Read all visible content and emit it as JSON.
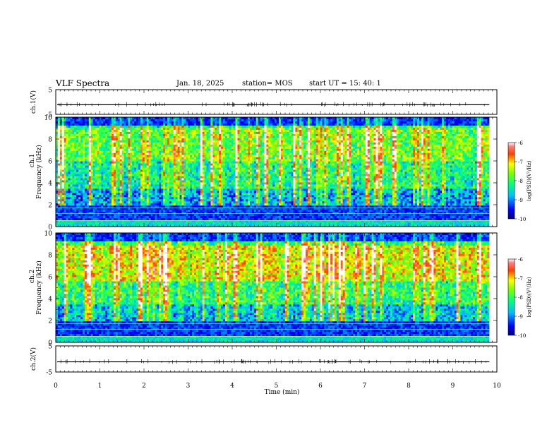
{
  "header": {
    "title": "VLF Spectra",
    "date": "Jan. 18, 2025",
    "station": "station= MOS",
    "start": "start  UT  =   15: 40: 1"
  },
  "chart_data": {
    "type": "heatmap",
    "xlabel": "Time  (min)",
    "x_ticks": [
      "0",
      "1",
      "2",
      "3",
      "4",
      "5",
      "6",
      "7",
      "8",
      "9",
      "10"
    ],
    "xlim": [
      0,
      10
    ],
    "data_end_min": 9.83,
    "panels": [
      {
        "id": "ch1v",
        "kind": "waveform",
        "ylabel": "ch.1(V)",
        "yticks": [
          "5",
          "-5"
        ],
        "ylim": [
          -5,
          5
        ],
        "baseline": -1.1
      },
      {
        "id": "ch1",
        "kind": "spectrogram",
        "ylabel_line1": "ch.1",
        "ylabel_line2": "Frequency (kHz)",
        "yticks": [
          "0",
          "2",
          "4",
          "6",
          "8",
          "10"
        ],
        "ylim": [
          0,
          10
        ],
        "colorbar": {
          "label": "log(PSD)(V²/Hz)",
          "ticks": [
            "-6",
            "-7",
            "-8",
            "-9",
            "-10"
          ],
          "range": [
            -10,
            -6
          ]
        }
      },
      {
        "id": "ch2",
        "kind": "spectrogram",
        "ylabel_line1": "ch.2",
        "ylabel_line2": "Frequency (kHz)",
        "yticks": [
          "0",
          "2",
          "4",
          "6",
          "8",
          "10"
        ],
        "ylim": [
          0,
          10
        ],
        "colorbar": {
          "label": "log(PSD)(V²/Hz)",
          "ticks": [
            "-6",
            "-7",
            "-8",
            "-9",
            "-10"
          ],
          "range": [
            -10,
            -6
          ]
        }
      },
      {
        "id": "ch2v",
        "kind": "waveform",
        "ylabel": "ch.2(V)",
        "yticks": [
          "5",
          "-5"
        ],
        "ylim": [
          -5,
          5
        ],
        "baseline": -1.1
      }
    ],
    "colormap": [
      "#00007f",
      "#0000ff",
      "#007fff",
      "#00ffff",
      "#7fff7f",
      "#ffff00",
      "#ff7f00",
      "#ff0000",
      "#ffffff"
    ]
  }
}
